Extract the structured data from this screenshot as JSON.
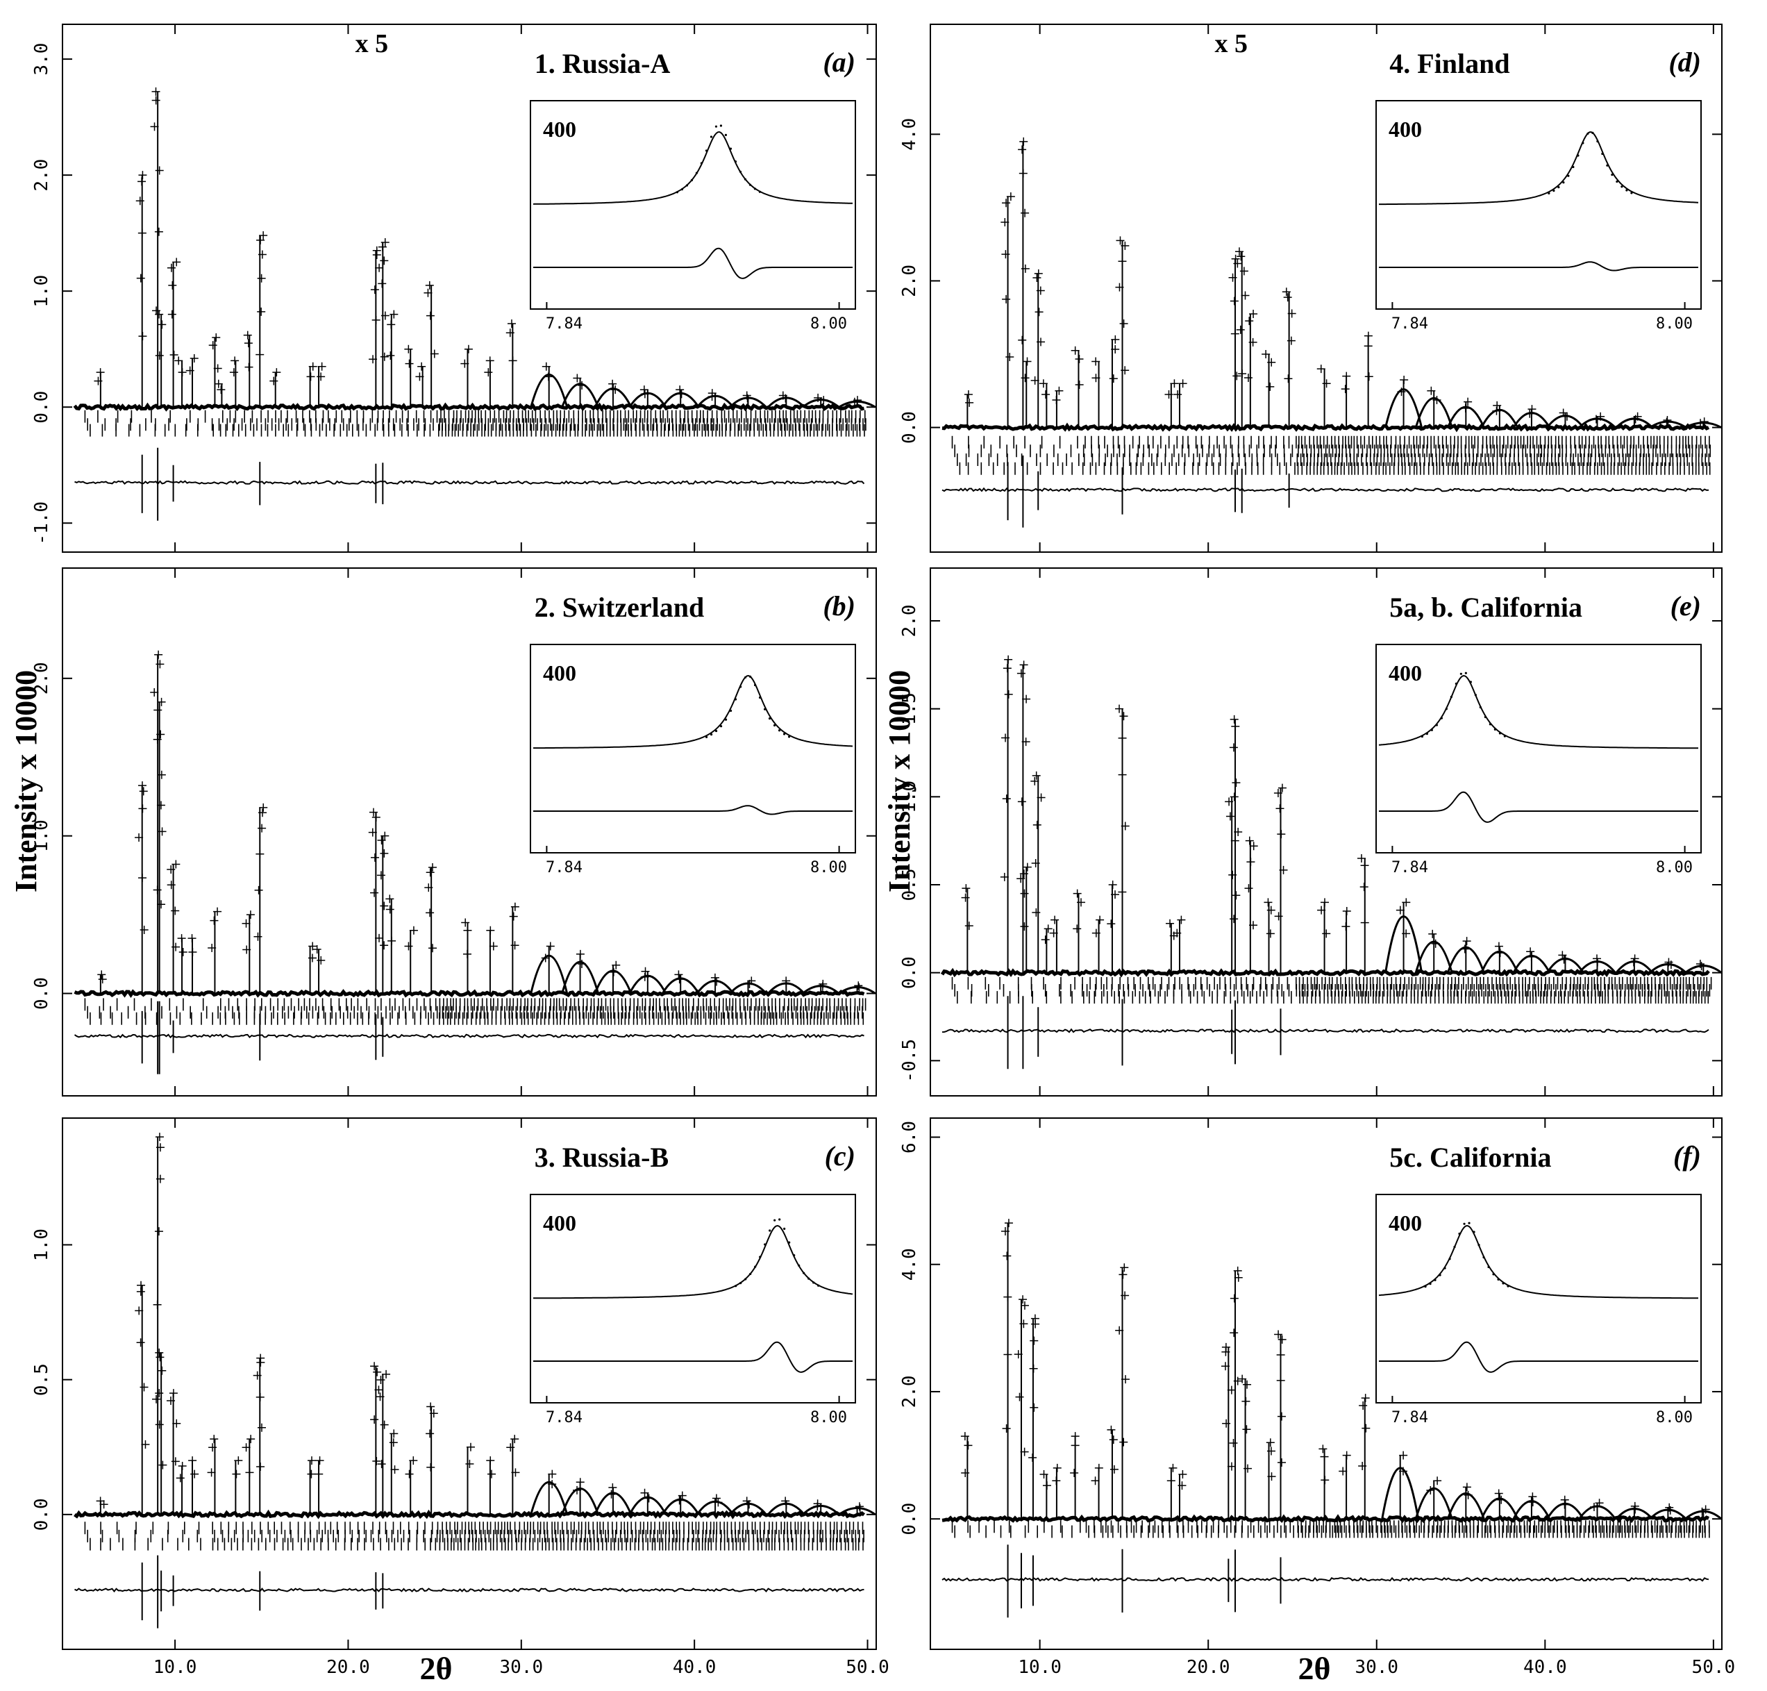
{
  "figure": {
    "ylabel": "Intensity x 10000",
    "xlabel": "2θ",
    "inset_xticks": [
      "7.84",
      "8.00"
    ],
    "inset_peak_label": "400",
    "scale_label": "x 5"
  },
  "chart_data": [
    {
      "id": "a",
      "type": "line",
      "panel_label": "(a)",
      "title": "1. Russia-A",
      "scale_label": "x 5",
      "ylim": [
        -1.25,
        3.3
      ],
      "yticks": [
        "-1.0",
        "0.0",
        "1.0",
        "2.0",
        "3.0"
      ],
      "ytick_values": [
        -1,
        0,
        1,
        2,
        3
      ],
      "xlim": [
        3.5,
        50.5
      ],
      "xticks": [
        "10.0",
        "20.0",
        "30.0",
        "40.0",
        "50.0"
      ],
      "show_xtick_labels": false,
      "baseline": 0.0,
      "difference_offset": -0.65,
      "reflection_rows": [
        -0.08,
        -0.15,
        -0.2
      ],
      "peaks": [
        {
          "x": 5.7,
          "y": 0.3
        },
        {
          "x": 8.1,
          "y": 2.0
        },
        {
          "x": 9.0,
          "y": 2.72
        },
        {
          "x": 9.2,
          "y": 0.8
        },
        {
          "x": 9.9,
          "y": 1.25
        },
        {
          "x": 10.4,
          "y": 0.4
        },
        {
          "x": 11.0,
          "y": 0.42
        },
        {
          "x": 12.3,
          "y": 0.6
        },
        {
          "x": 12.7,
          "y": 0.2
        },
        {
          "x": 13.5,
          "y": 0.4
        },
        {
          "x": 14.3,
          "y": 0.62
        },
        {
          "x": 14.9,
          "y": 1.48
        },
        {
          "x": 15.8,
          "y": 0.3
        },
        {
          "x": 17.8,
          "y": 0.35
        },
        {
          "x": 18.3,
          "y": 0.35
        },
        {
          "x": 21.6,
          "y": 1.35
        },
        {
          "x": 22.0,
          "y": 1.42
        },
        {
          "x": 22.5,
          "y": 0.8
        },
        {
          "x": 23.6,
          "y": 0.5
        },
        {
          "x": 24.3,
          "y": 0.35
        },
        {
          "x": 24.8,
          "y": 1.05
        },
        {
          "x": 26.9,
          "y": 0.5
        },
        {
          "x": 28.2,
          "y": 0.4
        },
        {
          "x": 29.5,
          "y": 0.72
        },
        {
          "x": 31.6,
          "y": 0.35
        },
        {
          "x": 33.4,
          "y": 0.25
        },
        {
          "x": 35.3,
          "y": 0.2
        },
        {
          "x": 37.3,
          "y": 0.15
        },
        {
          "x": 39.2,
          "y": 0.15
        },
        {
          "x": 41.2,
          "y": 0.12
        },
        {
          "x": 43.1,
          "y": 0.1
        },
        {
          "x": 45.3,
          "y": 0.1
        },
        {
          "x": 47.3,
          "y": 0.08
        },
        {
          "x": 49.4,
          "y": 0.06
        }
      ],
      "inset": {
        "label": "400",
        "xlim": [
          "7.84",
          "8.00"
        ],
        "peak_pos": 0.58,
        "observed_max": 1.1,
        "calc_max": 1.0,
        "diff": "misfit"
      }
    },
    {
      "id": "b",
      "type": "line",
      "panel_label": "(b)",
      "title": "2. Switzerland",
      "ylim": [
        -0.65,
        2.7
      ],
      "yticks": [
        "0.0",
        "1.0",
        "2.0"
      ],
      "ytick_values": [
        0,
        1,
        2
      ],
      "xlim": [
        3.5,
        50.5
      ],
      "xticks": [
        "10.0",
        "20.0",
        "30.0",
        "40.0",
        "50.0"
      ],
      "show_xtick_labels": false,
      "baseline": 0.0,
      "difference_offset": -0.27,
      "reflection_rows": [
        -0.07,
        -0.12,
        -0.16
      ],
      "peaks": [
        {
          "x": 5.7,
          "y": 0.12
        },
        {
          "x": 8.1,
          "y": 1.32
        },
        {
          "x": 9.0,
          "y": 2.15
        },
        {
          "x": 9.1,
          "y": 1.85
        },
        {
          "x": 9.9,
          "y": 0.82
        },
        {
          "x": 10.4,
          "y": 0.35
        },
        {
          "x": 11.0,
          "y": 0.35
        },
        {
          "x": 12.3,
          "y": 0.52
        },
        {
          "x": 14.3,
          "y": 0.5
        },
        {
          "x": 14.9,
          "y": 1.18
        },
        {
          "x": 17.8,
          "y": 0.3
        },
        {
          "x": 18.3,
          "y": 0.28
        },
        {
          "x": 21.6,
          "y": 1.15
        },
        {
          "x": 22.0,
          "y": 1.0
        },
        {
          "x": 22.5,
          "y": 0.6
        },
        {
          "x": 23.6,
          "y": 0.4
        },
        {
          "x": 24.8,
          "y": 0.8
        },
        {
          "x": 26.9,
          "y": 0.45
        },
        {
          "x": 28.2,
          "y": 0.4
        },
        {
          "x": 29.5,
          "y": 0.55
        },
        {
          "x": 31.6,
          "y": 0.3
        },
        {
          "x": 33.4,
          "y": 0.25
        },
        {
          "x": 35.3,
          "y": 0.18
        },
        {
          "x": 37.3,
          "y": 0.14
        },
        {
          "x": 39.2,
          "y": 0.12
        },
        {
          "x": 41.2,
          "y": 0.1
        },
        {
          "x": 43.1,
          "y": 0.08
        },
        {
          "x": 45.3,
          "y": 0.08
        },
        {
          "x": 47.3,
          "y": 0.06
        },
        {
          "x": 49.4,
          "y": 0.05
        }
      ],
      "inset": {
        "label": "400",
        "xlim": [
          "7.84",
          "8.00"
        ],
        "peak_pos": 0.67,
        "observed_max": 1.0,
        "calc_max": 1.0,
        "diff": "small"
      }
    },
    {
      "id": "c",
      "type": "line",
      "panel_label": "(c)",
      "title": "3. Russia-B",
      "ylim": [
        -0.5,
        1.47
      ],
      "yticks": [
        "0.0",
        "0.5",
        "1.0"
      ],
      "ytick_values": [
        0,
        0.5,
        1.0
      ],
      "xlim": [
        3.5,
        50.5
      ],
      "xticks": [
        "10.0",
        "20.0",
        "30.0",
        "40.0",
        "50.0"
      ],
      "show_xtick_labels": true,
      "baseline": 0.0,
      "difference_offset": -0.28,
      "reflection_rows": [
        -0.05,
        -0.08,
        -0.11
      ],
      "peaks": [
        {
          "x": 5.7,
          "y": 0.05
        },
        {
          "x": 8.1,
          "y": 0.85
        },
        {
          "x": 9.0,
          "y": 1.4
        },
        {
          "x": 9.2,
          "y": 0.6
        },
        {
          "x": 9.9,
          "y": 0.45
        },
        {
          "x": 10.4,
          "y": 0.18
        },
        {
          "x": 11.0,
          "y": 0.2
        },
        {
          "x": 12.3,
          "y": 0.28
        },
        {
          "x": 13.5,
          "y": 0.2
        },
        {
          "x": 14.3,
          "y": 0.28
        },
        {
          "x": 14.9,
          "y": 0.58
        },
        {
          "x": 17.8,
          "y": 0.2
        },
        {
          "x": 18.3,
          "y": 0.2
        },
        {
          "x": 21.6,
          "y": 0.55
        },
        {
          "x": 22.0,
          "y": 0.52
        },
        {
          "x": 22.5,
          "y": 0.3
        },
        {
          "x": 23.6,
          "y": 0.2
        },
        {
          "x": 24.8,
          "y": 0.4
        },
        {
          "x": 26.9,
          "y": 0.25
        },
        {
          "x": 28.2,
          "y": 0.2
        },
        {
          "x": 29.5,
          "y": 0.28
        },
        {
          "x": 31.6,
          "y": 0.15
        },
        {
          "x": 33.4,
          "y": 0.12
        },
        {
          "x": 35.3,
          "y": 0.1
        },
        {
          "x": 37.3,
          "y": 0.08
        },
        {
          "x": 39.2,
          "y": 0.07
        },
        {
          "x": 41.2,
          "y": 0.06
        },
        {
          "x": 43.1,
          "y": 0.05
        },
        {
          "x": 45.3,
          "y": 0.05
        },
        {
          "x": 47.3,
          "y": 0.04
        },
        {
          "x": 49.4,
          "y": 0.03
        }
      ],
      "inset": {
        "label": "400",
        "xlim": [
          "7.84",
          "8.00"
        ],
        "peak_pos": 0.76,
        "observed_max": 1.1,
        "calc_max": 1.0,
        "diff": "misfit"
      }
    },
    {
      "id": "d",
      "type": "line",
      "panel_label": "(d)",
      "title": "4. Finland",
      "scale_label": "x 5",
      "ylim": [
        -1.7,
        5.5
      ],
      "yticks": [
        "0.0",
        "2.0",
        "4.0"
      ],
      "ytick_values": [
        0,
        2,
        4
      ],
      "xlim": [
        3.5,
        50.5
      ],
      "xticks": [
        "10.0",
        "20.0",
        "30.0",
        "40.0",
        "50.0"
      ],
      "show_xtick_labels": false,
      "baseline": 0.0,
      "difference_offset": -0.85,
      "reflection_rows": [
        -0.2,
        -0.32,
        -0.44,
        -0.56
      ],
      "peaks": [
        {
          "x": 5.7,
          "y": 0.45
        },
        {
          "x": 8.1,
          "y": 3.15
        },
        {
          "x": 9.0,
          "y": 3.9
        },
        {
          "x": 9.2,
          "y": 0.9
        },
        {
          "x": 9.9,
          "y": 2.1
        },
        {
          "x": 10.4,
          "y": 0.6
        },
        {
          "x": 11.0,
          "y": 0.5
        },
        {
          "x": 12.3,
          "y": 1.05
        },
        {
          "x": 13.5,
          "y": 0.9
        },
        {
          "x": 14.3,
          "y": 1.2
        },
        {
          "x": 14.9,
          "y": 2.55
        },
        {
          "x": 17.8,
          "y": 0.6
        },
        {
          "x": 18.3,
          "y": 0.6
        },
        {
          "x": 21.6,
          "y": 2.3
        },
        {
          "x": 22.0,
          "y": 2.4
        },
        {
          "x": 22.5,
          "y": 1.55
        },
        {
          "x": 23.6,
          "y": 1.0
        },
        {
          "x": 24.8,
          "y": 1.85
        },
        {
          "x": 26.9,
          "y": 0.8
        },
        {
          "x": 28.2,
          "y": 0.7
        },
        {
          "x": 29.5,
          "y": 1.25
        },
        {
          "x": 31.6,
          "y": 0.65
        },
        {
          "x": 33.4,
          "y": 0.5
        },
        {
          "x": 35.3,
          "y": 0.35
        },
        {
          "x": 37.3,
          "y": 0.3
        },
        {
          "x": 39.2,
          "y": 0.25
        },
        {
          "x": 41.2,
          "y": 0.2
        },
        {
          "x": 43.1,
          "y": 0.15
        },
        {
          "x": 45.3,
          "y": 0.15
        },
        {
          "x": 47.3,
          "y": 0.1
        },
        {
          "x": 49.4,
          "y": 0.08
        }
      ],
      "inset": {
        "label": "400",
        "xlim": [
          "7.84",
          "8.00"
        ],
        "peak_pos": 0.66,
        "observed_max": 1.0,
        "calc_max": 1.0,
        "diff": "small"
      }
    },
    {
      "id": "e",
      "type": "line",
      "panel_label": "(e)",
      "title": "5a, b. California",
      "ylim": [
        -0.7,
        2.3
      ],
      "yticks": [
        "-0.5",
        "0.0",
        "0.5",
        "1.0",
        "1.5",
        "2.0"
      ],
      "ytick_values": [
        -0.5,
        0,
        0.5,
        1.0,
        1.5,
        2.0
      ],
      "xlim": [
        3.5,
        50.5
      ],
      "xticks": [
        "10.0",
        "20.0",
        "30.0",
        "40.0",
        "50.0"
      ],
      "show_xtick_labels": false,
      "baseline": 0.0,
      "difference_offset": -0.33,
      "reflection_rows": [
        -0.06,
        -0.1,
        -0.14
      ],
      "peaks": [
        {
          "x": 5.7,
          "y": 0.48
        },
        {
          "x": 8.1,
          "y": 1.78
        },
        {
          "x": 9.0,
          "y": 1.75
        },
        {
          "x": 9.2,
          "y": 0.6
        },
        {
          "x": 9.9,
          "y": 1.12
        },
        {
          "x": 10.4,
          "y": 0.25
        },
        {
          "x": 11.0,
          "y": 0.3
        },
        {
          "x": 12.3,
          "y": 0.45
        },
        {
          "x": 13.5,
          "y": 0.3
        },
        {
          "x": 14.3,
          "y": 0.5
        },
        {
          "x": 14.9,
          "y": 1.5
        },
        {
          "x": 17.8,
          "y": 0.28
        },
        {
          "x": 18.3,
          "y": 0.3
        },
        {
          "x": 21.4,
          "y": 1.0
        },
        {
          "x": 21.6,
          "y": 1.44
        },
        {
          "x": 22.5,
          "y": 0.75
        },
        {
          "x": 23.6,
          "y": 0.4
        },
        {
          "x": 24.3,
          "y": 1.05
        },
        {
          "x": 26.9,
          "y": 0.4
        },
        {
          "x": 28.2,
          "y": 0.35
        },
        {
          "x": 29.3,
          "y": 0.65
        },
        {
          "x": 31.6,
          "y": 0.4
        },
        {
          "x": 33.4,
          "y": 0.22
        },
        {
          "x": 35.3,
          "y": 0.18
        },
        {
          "x": 37.3,
          "y": 0.15
        },
        {
          "x": 39.2,
          "y": 0.12
        },
        {
          "x": 41.2,
          "y": 0.1
        },
        {
          "x": 43.1,
          "y": 0.08
        },
        {
          "x": 45.3,
          "y": 0.08
        },
        {
          "x": 47.3,
          "y": 0.06
        },
        {
          "x": 49.4,
          "y": 0.05
        }
      ],
      "inset": {
        "label": "400",
        "xlim": [
          "7.84",
          "8.00"
        ],
        "peak_pos": 0.27,
        "observed_max": 1.05,
        "calc_max": 1.0,
        "diff": "misfit"
      }
    },
    {
      "id": "f",
      "type": "line",
      "panel_label": "(f)",
      "title": "5c. California",
      "ylim": [
        -2.05,
        6.3
      ],
      "yticks": [
        "0.0",
        "2.0",
        "4.0",
        "6.0"
      ],
      "ytick_values": [
        0,
        2,
        4,
        6
      ],
      "xlim": [
        3.5,
        50.5
      ],
      "xticks": [
        "10.0",
        "20.0",
        "30.0",
        "40.0",
        "50.0"
      ],
      "show_xtick_labels": true,
      "baseline": 0.0,
      "difference_offset": -0.95,
      "reflection_rows": [
        -0.12,
        -0.2
      ],
      "peaks": [
        {
          "x": 5.7,
          "y": 1.3
        },
        {
          "x": 8.1,
          "y": 4.65
        },
        {
          "x": 8.9,
          "y": 3.45
        },
        {
          "x": 9.6,
          "y": 3.15
        },
        {
          "x": 10.4,
          "y": 0.7
        },
        {
          "x": 11.0,
          "y": 0.8
        },
        {
          "x": 12.1,
          "y": 1.3
        },
        {
          "x": 13.5,
          "y": 0.8
        },
        {
          "x": 14.3,
          "y": 1.4
        },
        {
          "x": 14.9,
          "y": 3.95
        },
        {
          "x": 17.8,
          "y": 0.8
        },
        {
          "x": 18.3,
          "y": 0.7
        },
        {
          "x": 21.2,
          "y": 2.7
        },
        {
          "x": 21.6,
          "y": 3.9
        },
        {
          "x": 22.2,
          "y": 2.2
        },
        {
          "x": 23.6,
          "y": 1.2
        },
        {
          "x": 24.3,
          "y": 2.9
        },
        {
          "x": 26.9,
          "y": 1.1
        },
        {
          "x": 28.2,
          "y": 1.0
        },
        {
          "x": 29.3,
          "y": 1.9
        },
        {
          "x": 31.4,
          "y": 1.0
        },
        {
          "x": 33.4,
          "y": 0.6
        },
        {
          "x": 35.3,
          "y": 0.5
        },
        {
          "x": 37.3,
          "y": 0.4
        },
        {
          "x": 39.2,
          "y": 0.35
        },
        {
          "x": 41.2,
          "y": 0.3
        },
        {
          "x": 43.1,
          "y": 0.25
        },
        {
          "x": 45.3,
          "y": 0.2
        },
        {
          "x": 47.3,
          "y": 0.18
        },
        {
          "x": 49.4,
          "y": 0.15
        }
      ],
      "inset": {
        "label": "400",
        "xlim": [
          "7.84",
          "8.00"
        ],
        "peak_pos": 0.28,
        "observed_max": 1.05,
        "calc_max": 1.0,
        "diff": "misfit"
      }
    }
  ]
}
